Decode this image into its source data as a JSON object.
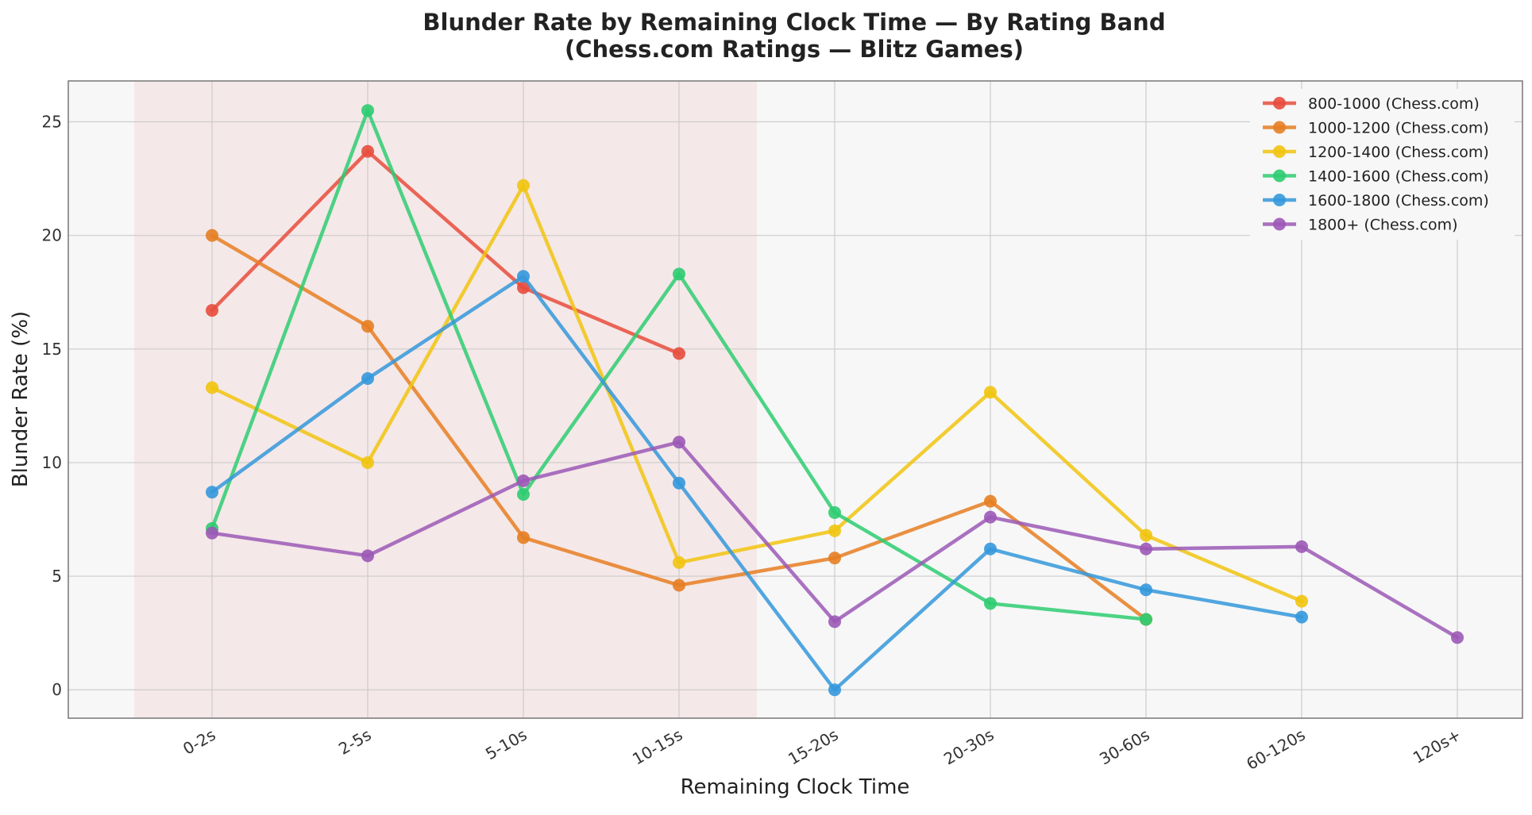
{
  "chart_data": {
    "type": "line",
    "title": "Blunder Rate by Remaining Clock Time — By Rating Band",
    "subtitle": "(Chess.com Ratings — Blitz Games)",
    "xlabel": "Remaining Clock Time",
    "ylabel": "Blunder Rate (%)",
    "categories": [
      "0-2s",
      "2-5s",
      "5-10s",
      "10-15s",
      "15-20s",
      "20-30s",
      "30-60s",
      "60-120s",
      "120s+"
    ],
    "ylim": [
      -1.25,
      26.8
    ],
    "yticks": [
      0,
      5,
      10,
      15,
      20,
      25
    ],
    "grid": true,
    "legend_position": "top-right",
    "highlight_region": {
      "from_category": "0-2s",
      "to_category": "10-15s",
      "color": "#f2d4d4"
    },
    "series": [
      {
        "name": "800-1000 (Chess.com)",
        "color": "#e74c3c",
        "values": [
          16.7,
          23.7,
          17.7,
          14.8,
          null,
          null,
          null,
          null,
          null
        ]
      },
      {
        "name": "1000-1200 (Chess.com)",
        "color": "#e67e22",
        "values": [
          20.0,
          16.0,
          6.7,
          4.6,
          5.8,
          8.3,
          3.1,
          null,
          null
        ]
      },
      {
        "name": "1200-1400 (Chess.com)",
        "color": "#f1c40f",
        "values": [
          13.3,
          10.0,
          22.2,
          5.6,
          7.0,
          13.1,
          6.8,
          3.9,
          null
        ]
      },
      {
        "name": "1400-1600 (Chess.com)",
        "color": "#2ecc71",
        "values": [
          7.1,
          25.5,
          8.6,
          18.3,
          7.8,
          3.8,
          3.1,
          null,
          null
        ]
      },
      {
        "name": "1600-1800 (Chess.com)",
        "color": "#3498db",
        "values": [
          8.7,
          13.7,
          18.2,
          9.1,
          0.0,
          6.2,
          4.4,
          3.2,
          null
        ]
      },
      {
        "name": "1800+ (Chess.com)",
        "color": "#9b59b6",
        "values": [
          6.9,
          5.9,
          9.2,
          10.9,
          3.0,
          7.6,
          6.2,
          6.3,
          2.3
        ]
      }
    ]
  }
}
